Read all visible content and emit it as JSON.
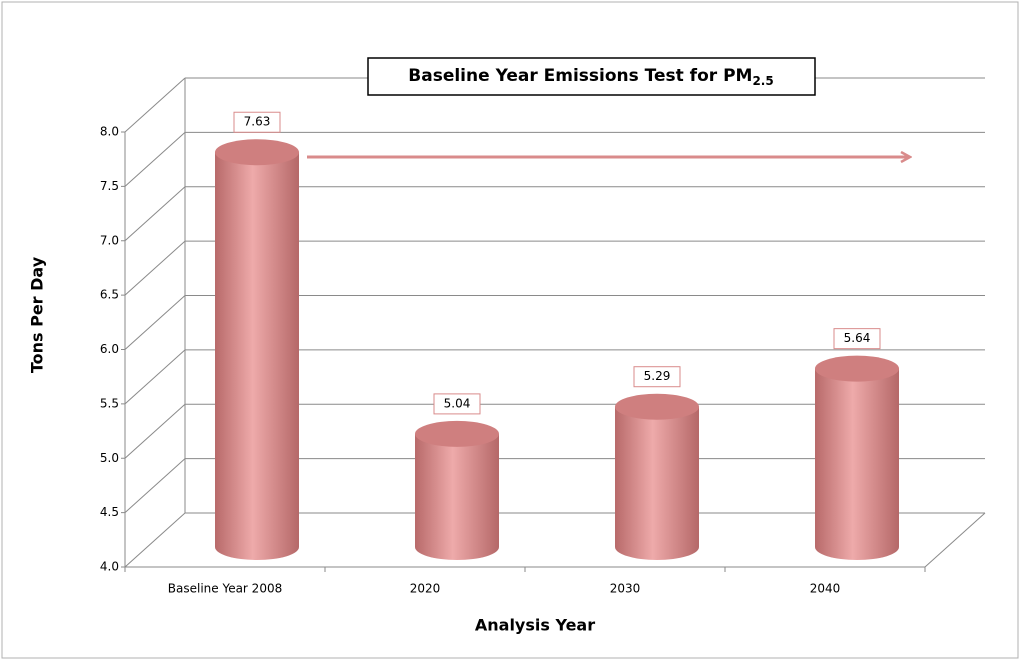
{
  "chart_data": {
    "type": "bar3d",
    "title": "Baseline Year Emissions Test for PM",
    "title_subscript": "2.5",
    "x_label": "Analysis Year",
    "y_label": "Tons Per Day",
    "categories": [
      "Baseline Year 2008",
      "2020",
      "2030",
      "2040"
    ],
    "values": [
      7.63,
      5.04,
      5.29,
      5.64
    ],
    "color": "#e39a9a",
    "ylim": [
      4,
      8
    ],
    "yticks": [
      {
        "value": 4,
        "label": "4.0"
      },
      {
        "value": 4.5,
        "label": "4.5"
      },
      {
        "value": 5,
        "label": "5.0"
      },
      {
        "value": 5.5,
        "label": "5.5"
      },
      {
        "value": 6,
        "label": "6.0"
      },
      {
        "value": 6.5,
        "label": "6.5"
      },
      {
        "value": 7,
        "label": "7.0"
      },
      {
        "value": 7.5,
        "label": "7.5"
      },
      {
        "value": 8,
        "label": "8.0"
      }
    ],
    "grid": true
  }
}
